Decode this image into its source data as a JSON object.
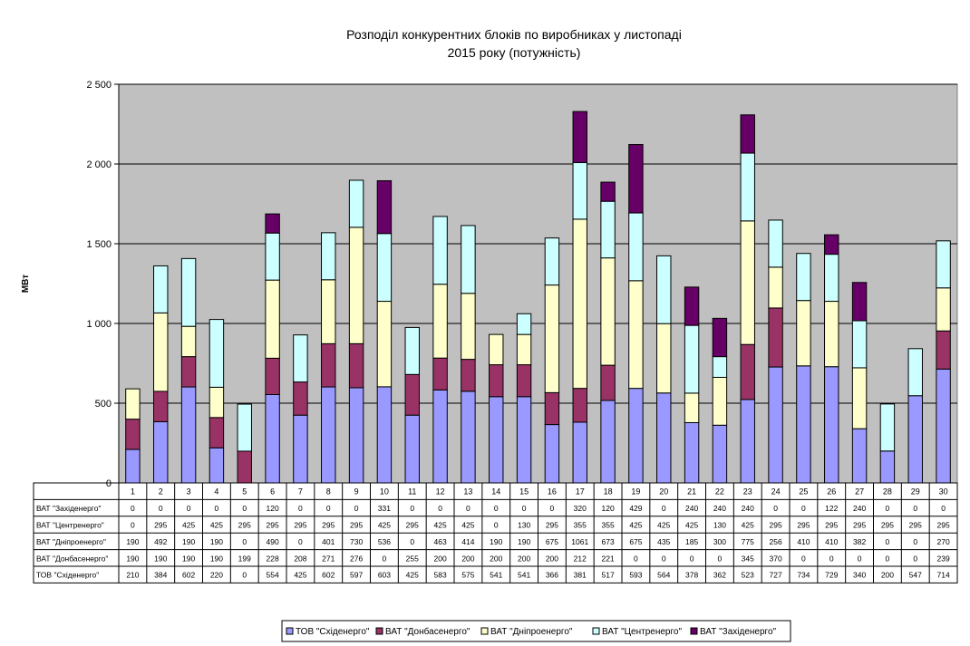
{
  "chart_data": {
    "type": "bar",
    "stacked": true,
    "title_line1": "Розподіл конкурентних блоків по виробниках у листопаді",
    "title_line2": "2015 року (потужність)",
    "xlabel": "",
    "ylabel": "МВт",
    "ylim": [
      0,
      2500
    ],
    "yticks": [
      0,
      500,
      1000,
      1500,
      2000,
      2500
    ],
    "ytick_labels": [
      "0",
      "500",
      "1 000",
      "1 500",
      "2 000",
      "2 500"
    ],
    "grid": true,
    "legend_position": "bottom",
    "categories": [
      "1",
      "2",
      "3",
      "4",
      "5",
      "6",
      "7",
      "8",
      "9",
      "10",
      "11",
      "12",
      "13",
      "14",
      "15",
      "16",
      "17",
      "18",
      "19",
      "20",
      "21",
      "22",
      "23",
      "24",
      "25",
      "26",
      "27",
      "28",
      "29",
      "30"
    ],
    "series": [
      {
        "name": "ТОВ \"Сxiденерго\"",
        "color": "#9999ff",
        "values": [
          210,
          384,
          602,
          220,
          0,
          554,
          425,
          602,
          597,
          603,
          425,
          583,
          575,
          541,
          541,
          366,
          381,
          517,
          593,
          564,
          378,
          362,
          523,
          727,
          734,
          729,
          340,
          200,
          547,
          714
        ]
      },
      {
        "name": "ВАТ \"Донбасенерго\"",
        "color": "#993366",
        "values": [
          190,
          190,
          190,
          190,
          199,
          228,
          208,
          271,
          276,
          0,
          255,
          200,
          200,
          200,
          200,
          200,
          212,
          221,
          0,
          0,
          0,
          0,
          345,
          370,
          0,
          0,
          0,
          0,
          0,
          239
        ]
      },
      {
        "name": "ВАТ \"Дніпроенерго\"",
        "color": "#ffffcc",
        "values": [
          190,
          492,
          190,
          190,
          0,
          490,
          0,
          401,
          730,
          536,
          0,
          463,
          414,
          190,
          190,
          675,
          1061,
          673,
          675,
          435,
          185,
          300,
          775,
          256,
          410,
          410,
          382,
          0,
          0,
          270
        ]
      },
      {
        "name": "ВАТ \"Центренерго\"",
        "color": "#ccffff",
        "values": [
          0,
          295,
          425,
          425,
          295,
          295,
          295,
          295,
          295,
          425,
          295,
          425,
          425,
          0,
          130,
          295,
          355,
          355,
          425,
          425,
          425,
          130,
          425,
          295,
          295,
          295,
          295,
          295,
          295,
          295
        ]
      },
      {
        "name": "ВАТ \"Західенерго\"",
        "color": "#660066",
        "values": [
          0,
          0,
          0,
          0,
          0,
          120,
          0,
          0,
          0,
          331,
          0,
          0,
          0,
          0,
          0,
          0,
          320,
          120,
          429,
          0,
          240,
          240,
          240,
          0,
          0,
          122,
          240,
          0,
          0,
          0
        ]
      }
    ],
    "table_row_labels": [
      "ВАТ \"Західенерго\"",
      "ВАТ \"Центренерго\"",
      "ВАТ \"Дніпроенерго\"",
      "ВАТ \"Донбасенерго\"",
      "ТОВ \"Сxiденерго\""
    ],
    "legend_labels": [
      "ТОВ \"Сxiденерго\"",
      "ВАТ \"Донбасенерго\"",
      "ВАТ \"Дніпроенерго\"",
      "ВАТ \"Центренерго\"",
      "ВАТ \"Західенерго\""
    ],
    "plot_background": "#c0c0c0"
  }
}
